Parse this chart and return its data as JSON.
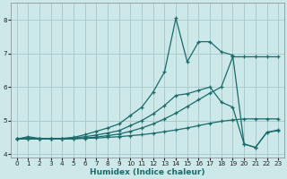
{
  "xlabel": "Humidex (Indice chaleur)",
  "background_color": "#cce8e8",
  "grid_color": "#aacccc",
  "line_color": "#1a6b6b",
  "xlim": [
    -0.5,
    23.5
  ],
  "ylim": [
    3.9,
    8.5
  ],
  "yticks": [
    4,
    5,
    6,
    7,
    8
  ],
  "xticks": [
    0,
    1,
    2,
    3,
    4,
    5,
    6,
    7,
    8,
    9,
    10,
    11,
    12,
    13,
    14,
    15,
    16,
    17,
    18,
    19,
    20,
    21,
    22,
    23
  ],
  "series1_x": [
    0,
    1,
    2,
    3,
    4,
    5,
    6,
    7,
    8,
    9,
    10,
    11,
    12,
    13,
    14,
    15,
    16,
    17,
    18,
    19,
    20,
    21,
    22,
    23
  ],
  "series1_y": [
    4.45,
    4.47,
    4.45,
    4.45,
    4.45,
    4.46,
    4.47,
    4.48,
    4.5,
    4.52,
    4.55,
    4.58,
    4.62,
    4.67,
    4.72,
    4.78,
    4.85,
    4.92,
    4.98,
    5.02,
    5.05,
    5.05,
    5.05,
    5.05
  ],
  "series2_x": [
    0,
    1,
    2,
    3,
    4,
    5,
    6,
    7,
    8,
    9,
    10,
    11,
    12,
    13,
    14,
    15,
    16,
    17,
    18,
    19,
    20,
    21,
    22,
    23
  ],
  "series2_y": [
    4.45,
    4.47,
    4.45,
    4.45,
    4.46,
    4.48,
    4.52,
    4.57,
    4.63,
    4.7,
    4.85,
    5.0,
    5.2,
    5.45,
    5.75,
    5.8,
    5.9,
    6.0,
    5.55,
    5.4,
    4.3,
    4.2,
    4.65,
    4.7
  ],
  "series3_x": [
    0,
    1,
    2,
    3,
    4,
    5,
    6,
    7,
    8,
    9,
    10,
    11,
    12,
    13,
    14,
    15,
    16,
    17,
    18,
    19,
    20,
    21,
    22,
    23
  ],
  "series3_y": [
    4.45,
    4.52,
    4.47,
    4.47,
    4.47,
    4.5,
    4.58,
    4.68,
    4.78,
    4.9,
    5.15,
    5.4,
    5.85,
    6.45,
    8.05,
    6.75,
    7.35,
    7.35,
    7.05,
    6.95,
    4.3,
    4.2,
    4.65,
    4.72
  ],
  "series4_x": [
    0,
    1,
    2,
    3,
    4,
    5,
    6,
    7,
    8,
    9,
    10,
    11,
    12,
    13,
    14,
    15,
    16,
    17,
    18,
    19,
    20,
    21,
    22,
    23
  ],
  "series4_y": [
    4.45,
    4.45,
    4.45,
    4.45,
    4.45,
    4.46,
    4.48,
    4.51,
    4.55,
    4.6,
    4.68,
    4.78,
    4.9,
    5.05,
    5.22,
    5.42,
    5.62,
    5.82,
    6.0,
    6.9,
    6.9,
    6.9,
    6.9,
    6.9
  ]
}
